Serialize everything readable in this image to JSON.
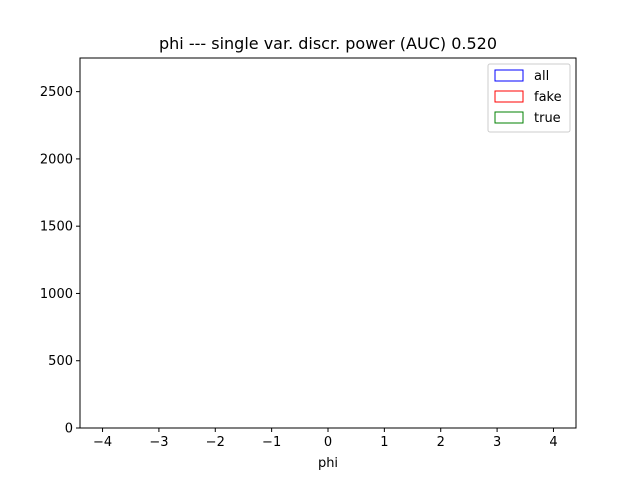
{
  "chart_data": {
    "type": "histogram",
    "title": "phi --- single var. discr. power (AUC) 0.520",
    "xlabel": "phi",
    "ylabel": "",
    "xlim": [
      -4.4,
      4.4
    ],
    "ylim": [
      0,
      2750
    ],
    "xticks": [
      -4,
      -3,
      -2,
      -1,
      0,
      1,
      2,
      3,
      4
    ],
    "xtick_labels": [
      "−4",
      "−3",
      "−2",
      "−1",
      "0",
      "1",
      "2",
      "3",
      "4"
    ],
    "yticks": [
      0,
      500,
      1000,
      1500,
      2000,
      2500
    ],
    "ytick_labels": [
      "0",
      "500",
      "1000",
      "1500",
      "2000",
      "2500"
    ],
    "bins": {
      "start": -4.0,
      "end": 4.0,
      "count": 100
    },
    "legend_position": "top-right",
    "grid": false,
    "series": [
      {
        "name": "all",
        "color": "#0000ff",
        "values": [
          0,
          0,
          0,
          0,
          0,
          0,
          0,
          0,
          0,
          0,
          0,
          0,
          0,
          0,
          0,
          0,
          0,
          0,
          0,
          0,
          0,
          0,
          0,
          0,
          0,
          0,
          0,
          0,
          0,
          0,
          0,
          0,
          0,
          0,
          0,
          0,
          0,
          0,
          0,
          0,
          0,
          0,
          0,
          0,
          0,
          0,
          0,
          0,
          0,
          0,
          0,
          0,
          0,
          0,
          0,
          0,
          0,
          0,
          0,
          0,
          0,
          0,
          0,
          0,
          0,
          0,
          0,
          0,
          0,
          0,
          0,
          0,
          0,
          0,
          0,
          0,
          0,
          0,
          0,
          0,
          0,
          0,
          0,
          0,
          0,
          0,
          0,
          0,
          0,
          0,
          0,
          0,
          0,
          0,
          0,
          0,
          0,
          0,
          0,
          0
        ]
      },
      {
        "name": "fake",
        "color": "#ff0000",
        "values": [
          0,
          0,
          0,
          0,
          0,
          0,
          0,
          0,
          0,
          0,
          0,
          0,
          0,
          0,
          0,
          0,
          0,
          0,
          0,
          0,
          0,
          0,
          0,
          0,
          0,
          0,
          0,
          0,
          0,
          0,
          0,
          0,
          0,
          0,
          0,
          0,
          0,
          0,
          0,
          0,
          0,
          0,
          0,
          0,
          0,
          0,
          0,
          0,
          0,
          0,
          0,
          0,
          0,
          0,
          0,
          0,
          0,
          0,
          0,
          0,
          0,
          0,
          0,
          0,
          0,
          0,
          0,
          0,
          0,
          0,
          0,
          0,
          0,
          0,
          0,
          0,
          0,
          0,
          0,
          0,
          0,
          0,
          0,
          0,
          0,
          0,
          0,
          0,
          0,
          0,
          0,
          0,
          0,
          0,
          0,
          0,
          0,
          0,
          0,
          0
        ]
      },
      {
        "name": "true",
        "color": "#008000",
        "values": [
          0,
          0,
          0,
          0,
          0,
          0,
          0,
          0,
          0,
          0,
          0,
          0,
          0,
          0,
          0,
          0,
          0,
          0,
          0,
          0,
          0,
          0,
          0,
          0,
          0,
          0,
          0,
          0,
          0,
          0,
          0,
          0,
          0,
          0,
          0,
          0,
          0,
          0,
          0,
          0,
          0,
          0,
          0,
          0,
          0,
          0,
          0,
          0,
          0,
          0,
          0,
          0,
          0,
          0,
          0,
          0,
          0,
          0,
          0,
          0,
          0,
          0,
          0,
          0,
          0,
          0,
          0,
          0,
          0,
          0,
          0,
          0,
          0,
          0,
          0,
          0,
          0,
          0,
          0,
          0,
          0,
          0,
          0,
          0,
          0,
          0,
          0,
          0,
          0,
          0,
          0,
          0,
          0,
          0,
          0,
          0,
          0,
          0,
          0,
          0
        ]
      }
    ]
  }
}
